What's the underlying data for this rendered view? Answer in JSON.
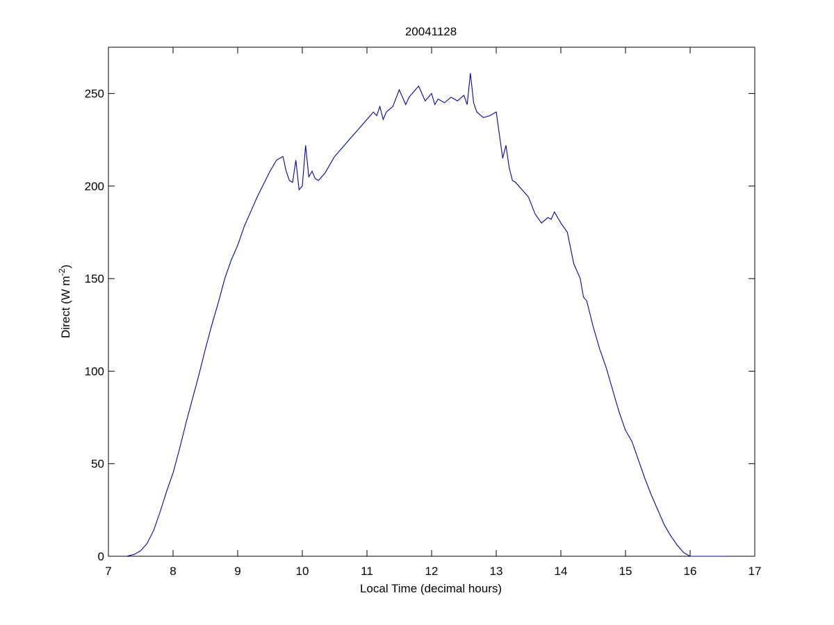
{
  "chart_data": {
    "type": "line",
    "title": "20041128",
    "xlabel": "Local Time (decimal hours)",
    "ylabel": "Direct (W m",
    "ylabel_superscript": "-2",
    "ylabel_close": ")",
    "xlim": [
      7,
      17
    ],
    "ylim": [
      0,
      275
    ],
    "xticks": [
      7,
      8,
      9,
      10,
      11,
      12,
      13,
      14,
      15,
      16,
      17
    ],
    "yticks": [
      0,
      50,
      100,
      150,
      200,
      250
    ],
    "grid": false,
    "line_color": "#0000aa",
    "series": [
      {
        "x": [
          7.28,
          7.4,
          7.5,
          7.6,
          7.7,
          7.8,
          7.9,
          8.0,
          8.1,
          8.2,
          8.3,
          8.4,
          8.5,
          8.6,
          8.7,
          8.8,
          8.9,
          9.0,
          9.1,
          9.2,
          9.3,
          9.4,
          9.5,
          9.6,
          9.7,
          9.75,
          9.8,
          9.85,
          9.9,
          9.95,
          10.0,
          10.05,
          10.1,
          10.15,
          10.2,
          10.25,
          10.3,
          10.35,
          10.4,
          10.45,
          10.5,
          10.6,
          10.7,
          10.8,
          10.9,
          11.0,
          11.1,
          11.15,
          11.2,
          11.25,
          11.3,
          11.4,
          11.5,
          11.6,
          11.65,
          11.7,
          11.8,
          11.9,
          12.0,
          12.05,
          12.1,
          12.2,
          12.3,
          12.4,
          12.5,
          12.55,
          12.6,
          12.65,
          12.7,
          12.8,
          12.9,
          13.0,
          13.1,
          13.15,
          13.2,
          13.25,
          13.3,
          13.4,
          13.5,
          13.6,
          13.7,
          13.8,
          13.85,
          13.9,
          14.0,
          14.1,
          14.2,
          14.3,
          14.35,
          14.4,
          14.5,
          14.6,
          14.7,
          14.8,
          14.9,
          15.0,
          15.1,
          15.2,
          15.3,
          15.4,
          15.5,
          15.6,
          15.7,
          15.8,
          15.9,
          16.0,
          16.1,
          16.2,
          16.3,
          16.4,
          16.5,
          16.55
        ],
        "y": [
          0,
          1,
          3,
          7,
          14,
          24,
          35,
          45,
          58,
          72,
          85,
          98,
          112,
          125,
          137,
          150,
          160,
          168,
          178,
          186,
          194,
          201,
          208,
          214,
          216,
          208,
          203,
          202,
          214,
          198,
          200,
          222,
          205,
          208,
          204,
          203,
          205,
          207,
          210,
          213,
          216,
          220,
          224,
          228,
          232,
          236,
          240,
          238,
          243,
          236,
          240,
          243,
          252,
          244,
          248,
          250,
          254,
          246,
          250,
          244,
          247,
          245,
          248,
          246,
          249,
          244,
          261,
          245,
          240,
          237,
          238,
          240,
          215,
          222,
          210,
          203,
          202,
          198,
          194,
          185,
          180,
          183,
          182,
          186,
          180,
          175,
          158,
          150,
          140,
          138,
          124,
          112,
          102,
          90,
          78,
          68,
          62,
          52,
          42,
          33,
          25,
          17,
          11,
          6,
          2,
          0,
          0,
          0,
          0,
          0,
          0,
          0
        ]
      }
    ]
  }
}
